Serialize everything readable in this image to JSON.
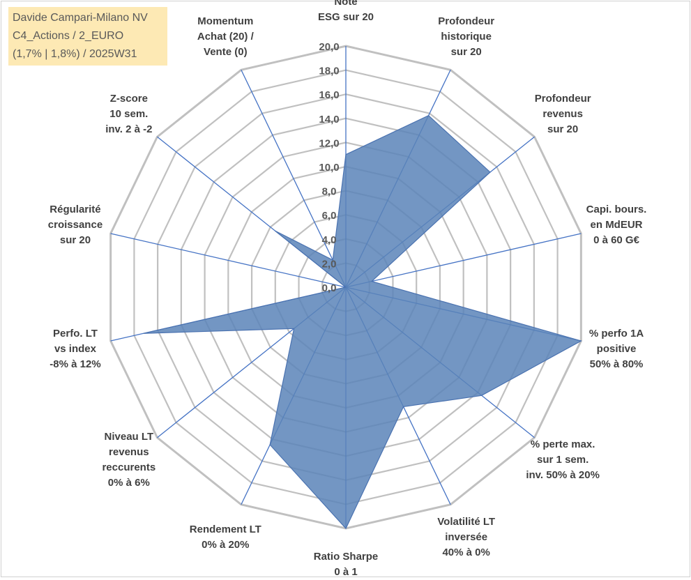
{
  "title_lines": [
    "Davide Campari-Milano NV",
    "C4_Actions / 2_EURO",
    "(1,7% | 1,8%) / 2025W31"
  ],
  "colors": {
    "grid": "#c0c0c0",
    "spoke": "#4472c4",
    "fill": "#5b84b8",
    "edge": "#4a72b0",
    "title_bg": "#fde9b4"
  },
  "chart_data": {
    "type": "radar",
    "title": "Davide Campari-Milano NV / C4_Actions / 2_EURO / (1,7% | 1,8%) / 2025W31",
    "rlim": [
      0,
      20
    ],
    "grid": true,
    "tick_labels": [
      "0,0",
      "2,0",
      "4,0",
      "6,0",
      "8,0",
      "10,0",
      "12,0",
      "14,0",
      "16,0",
      "18,0",
      "20,0"
    ],
    "axes": [
      {
        "label": [
          "Note",
          "ESG sur 20"
        ],
        "value": 11.0
      },
      {
        "label": [
          "Profondeur",
          "historique",
          "sur 20"
        ],
        "value": 15.8
      },
      {
        "label": [
          "Profondeur",
          "revenus",
          "sur 20"
        ],
        "value": 15.3
      },
      {
        "label": [
          "Capi. bours.",
          "en MdEUR",
          "0 à 60 G€"
        ],
        "value": 2.2
      },
      {
        "label": [
          "% perfo 1A",
          "positive",
          "50% à 80%"
        ],
        "value": 20.0
      },
      {
        "label": [
          "% perte max.",
          "sur 1 sem.",
          "inv. 50% à 20%"
        ],
        "value": 14.4
      },
      {
        "label": [
          "Volatilité LT",
          "inversée",
          "40% à 0%"
        ],
        "value": 11.0
      },
      {
        "label": [
          "Ratio Sharpe",
          "0 à 1"
        ],
        "value": 20.0
      },
      {
        "label": [
          "Rendement LT",
          "0% à 20%"
        ],
        "value": 14.5
      },
      {
        "label": [
          "Niveau LT",
          "revenus",
          "reccurents",
          "0% à 6%"
        ],
        "value": 5.5
      },
      {
        "label": [
          "Perfo. LT",
          "vs index",
          "-8% à 12%"
        ],
        "value": 17.2
      },
      {
        "label": [
          "Régularité",
          "croissance",
          "sur 20"
        ],
        "value": 0.0
      },
      {
        "label": [
          "Z-score",
          "10 sem.",
          "inv. 2 à -2"
        ],
        "value": 7.5
      },
      {
        "label": [
          "Momentum",
          "Achat (20) /",
          "Vente (0)"
        ],
        "value": 2.5
      }
    ]
  }
}
